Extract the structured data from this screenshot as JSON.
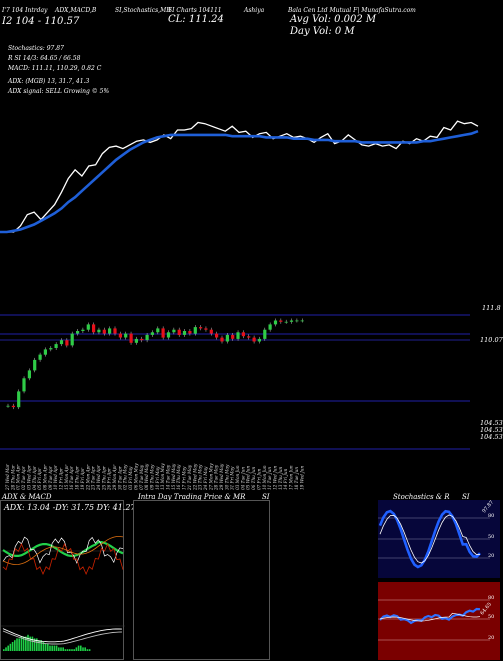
{
  "header": {
    "items": [
      "I'7 104 Intrday",
      "ADX,MACD,B",
      "SI,Stochastics,MR",
      "SI Charts 104111",
      "Ashiya",
      "Bala Cen Ltd  Mutual F| MunafaSutra.com"
    ],
    "cl": "CL: 111.24",
    "avg_vol": "Avg Vol: 0.002  M",
    "day_vol": "Day Vol: 0   M",
    "level_line": "I2  104 - 110.57",
    "indicators": [
      "Stochastics: 97.87",
      "R                 SI 14/3: 64.65 / 66.58",
      "MACD: 111.11, 110.29,  0.82  C",
      "ADX:                         (MGB) 13,  31.7,  41.3",
      "ADX  signal: SELL Growing © 5%"
    ]
  },
  "colors": {
    "accent": "#1f5fd8",
    "up": "#2fcc47",
    "down": "#e8101a",
    "line": "#ffffff",
    "level": "#1f1fa8"
  },
  "chart_data": [
    {
      "type": "line",
      "name": "price-with-moving-average",
      "x_index": [
        1,
        2,
        3,
        4,
        5,
        6,
        7,
        8,
        9,
        10,
        11,
        12,
        13,
        14,
        15,
        16,
        17,
        18,
        19,
        20,
        21,
        22,
        23,
        24,
        25,
        26,
        27,
        28,
        29,
        30,
        31,
        32,
        33,
        34,
        35,
        36,
        37,
        38,
        39,
        40,
        41,
        42,
        43,
        44,
        45,
        46,
        47,
        48,
        49,
        50,
        51,
        52,
        53,
        54,
        55,
        56,
        57,
        58,
        59,
        60,
        61,
        62,
        63,
        64,
        65,
        66,
        67,
        68,
        69,
        70,
        71
      ],
      "series": [
        {
          "values": [
            0.0,
            0.0,
            0.0,
            0.5,
            1.4,
            1.6,
            1.0,
            1.6,
            2.2,
            3.2,
            4.3,
            5.0,
            4.5,
            5.3,
            5.4,
            6.3,
            6.8,
            6.9,
            6.7,
            7.0,
            7.3,
            7.4,
            7.2,
            7.4,
            7.8,
            7.5,
            8.2,
            8.2,
            8.3,
            8.8,
            8.7,
            8.5,
            8.3,
            8.1,
            8.5,
            8.0,
            8.1,
            7.6,
            7.9,
            8.0,
            7.5,
            7.7,
            7.9,
            7.6,
            7.7,
            7.5,
            7.2,
            7.6,
            7.9,
            7.1,
            7.3,
            7.8,
            7.4,
            7.0,
            6.9,
            7.1,
            6.9,
            7.0,
            6.7,
            7.3,
            7.1,
            7.5,
            7.3,
            7.7,
            7.6,
            8.4,
            8.2,
            8.9,
            8.7,
            8.8,
            8.5
          ]
        },
        {
          "values": [
            0.0,
            0.0,
            0.1,
            0.2,
            0.4,
            0.6,
            0.9,
            1.2,
            1.5,
            1.9,
            2.4,
            2.8,
            3.3,
            3.8,
            4.3,
            4.8,
            5.3,
            5.8,
            6.2,
            6.6,
            6.9,
            7.2,
            7.4,
            7.6,
            7.7,
            7.8,
            7.8,
            7.8,
            7.8,
            7.8,
            7.8,
            7.8,
            7.8,
            7.8,
            7.7,
            7.7,
            7.7,
            7.7,
            7.7,
            7.6,
            7.6,
            7.6,
            7.6,
            7.5,
            7.5,
            7.5,
            7.4,
            7.4,
            7.4,
            7.3,
            7.3,
            7.3,
            7.3,
            7.2,
            7.2,
            7.2,
            7.2,
            7.2,
            7.2,
            7.2,
            7.2,
            7.2,
            7.3,
            7.3,
            7.4,
            7.5,
            7.6,
            7.7,
            7.8,
            7.9,
            8.1
          ]
        }
      ]
    },
    {
      "type": "candlestick",
      "name": "daily-candles",
      "dates": [
        "27 Wed Mar",
        "28 Thu Mar",
        "01 Mon Apr",
        "02 Tue Apr",
        "03 Wed Apr",
        "04 Thu Apr",
        "05 Fri Apr",
        "08 Mon Apr",
        "09 Tue Apr",
        "10 Wed Apr",
        "12 Fri Apr",
        "15 Mon Apr",
        "16 Tue Apr",
        "18 Thu Apr",
        "19 Fri Apr",
        "22 Mon Apr",
        "23 Tue Apr",
        "24 Wed Apr",
        "25 Thu Apr",
        "26 Fri Apr",
        "29 Mon Apr",
        "30 Tue Apr",
        "02 Thu May",
        "03 Fri May",
        "06 Mon May",
        "07 Tue May",
        "08 Wed May",
        "09 Thu May",
        "10 Fri May",
        "13 Mon May",
        "14 Tue May",
        "15 Wed May",
        "16 Thu May",
        "17 Fri May",
        "21 Tue May",
        "22 Wed May",
        "23 Thu May",
        "24 Fri May",
        "27 Mon May",
        "28 Tue May",
        "29 Wed May",
        "30 Thu May",
        "31 Fri May",
        "03 Mon Jun",
        "04 Tue Jun",
        "05 Wed Jun",
        "06 Thu Jun",
        "07 Fri Jun",
        "10 Mon Jun",
        "11 Tue Jun",
        "12 Wed Jun",
        "13 Thu Jun",
        "14 Fri Jun",
        "17 Mon Jun",
        "18 Tue Jun",
        "19 Wed Jun"
      ],
      "open": [
        104.7,
        104.7,
        104.6,
        105.8,
        106.8,
        107.4,
        108.2,
        108.6,
        109.0,
        109.1,
        109.4,
        109.7,
        109.3,
        110.2,
        110.4,
        110.5,
        110.9,
        110.3,
        110.5,
        110.2,
        110.6,
        110.2,
        109.9,
        110.2,
        109.5,
        109.8,
        109.7,
        110.1,
        110.3,
        110.6,
        109.9,
        110.3,
        110.5,
        110.1,
        110.4,
        110.2,
        110.7,
        110.6,
        110.5,
        110.2,
        109.9,
        109.6,
        110.1,
        109.8,
        110.3,
        110.0,
        109.9,
        109.6,
        109.8,
        110.5,
        110.9,
        111.2,
        111.1,
        111.1,
        111.2,
        111.2
      ],
      "close": [
        104.7,
        104.6,
        105.8,
        106.8,
        107.4,
        108.2,
        108.6,
        109.0,
        109.1,
        109.4,
        109.7,
        109.3,
        110.2,
        110.4,
        110.5,
        110.9,
        110.3,
        110.5,
        110.2,
        110.6,
        110.2,
        109.9,
        110.2,
        109.5,
        109.8,
        109.7,
        110.1,
        110.3,
        110.6,
        109.9,
        110.3,
        110.5,
        110.1,
        110.4,
        110.2,
        110.7,
        110.6,
        110.5,
        110.2,
        109.9,
        109.6,
        110.1,
        109.8,
        110.3,
        110.0,
        109.9,
        109.6,
        109.8,
        110.5,
        110.9,
        111.2,
        111.1,
        111.1,
        111.2,
        111.2,
        111.2
      ]
    },
    {
      "type": "bar",
      "name": "macd-histogram",
      "values": [
        0.1,
        0.2,
        0.3,
        0.4,
        0.5,
        0.6,
        0.7,
        0.7,
        0.8,
        0.8,
        0.8,
        0.9,
        0.8,
        0.8,
        0.7,
        0.7,
        0.6,
        0.6,
        0.5,
        0.4,
        0.4,
        0.3,
        0.3,
        0.3,
        0.3,
        0.2,
        0.2,
        0.2,
        0.1,
        0.1,
        0.1,
        0.1,
        0.1,
        0.2,
        0.3,
        0.3,
        0.2,
        0.2,
        0.1,
        0.1
      ]
    }
  ],
  "price_levels": {
    "high_label": "111.8",
    "mid_label": "110.07",
    "low_label_1": "104.53",
    "low_label_2": "104.53",
    "low_label_3": "104.53"
  },
  "bottom_left": {
    "adx_title": "ADX  & MACD",
    "adx_readout": "ADX: 13.04   -DY: 31.75  DY: 41.27"
  },
  "bottom_mid": {
    "title": "Intra  Day Trading Price  & MR",
    "si_label": "SI"
  },
  "bottom_right": {
    "title": "Stochastics & R",
    "si_label": "SI",
    "stoch_ticks": [
      "80",
      "50",
      "20"
    ],
    "rsi_ticks": [
      "80",
      "50",
      "20"
    ],
    "stoch_value": "97.87",
    "rsi_value": "64.65"
  }
}
